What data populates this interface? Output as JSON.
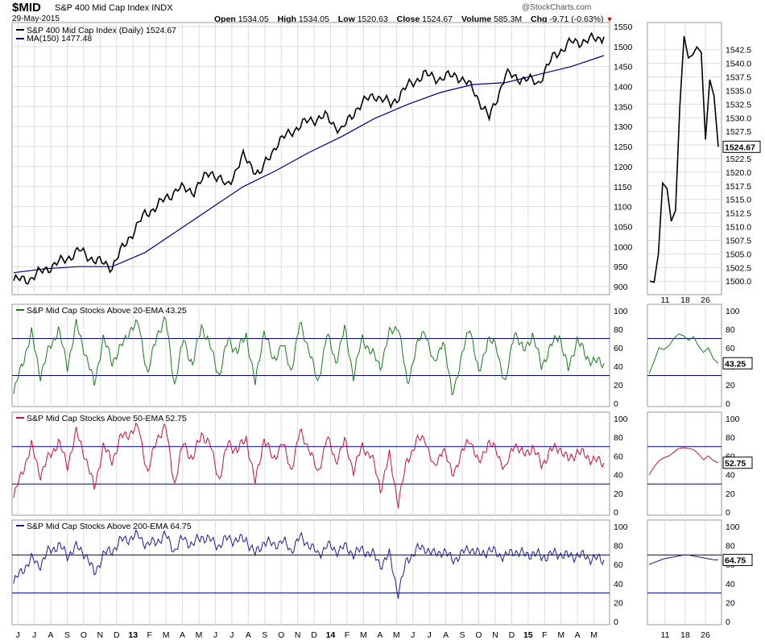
{
  "header": {
    "symbol": "$MID",
    "name": "S&P 400 Mid Cap Index",
    "exchange": "INDX",
    "date": "29-May-2015",
    "copyright": "@StockCharts.com",
    "quote": {
      "open_label": "Open",
      "open": "1534.05",
      "high_label": "High",
      "high": "1534.05",
      "low_label": "Low",
      "low": "1520.63",
      "close_label": "Close",
      "close": "1524.67",
      "volume_label": "Volume",
      "volume": "585.3M",
      "chg_label": "Chg",
      "chg": "-9.71 (-0.63%)",
      "chg_arrow": "▼"
    }
  },
  "colors": {
    "price": "#000000",
    "ma": "#00008b",
    "ema20": "#1a7a1a",
    "ema50": "#cc1133",
    "ema200": "#1a1a99",
    "ref_line": "#00008b",
    "grid": "#dddddd",
    "frame": "#999999"
  },
  "x_axis": {
    "labels": [
      "J",
      "J",
      "A",
      "S",
      "O",
      "N",
      "D",
      "13",
      "F",
      "M",
      "A",
      "M",
      "J",
      "J",
      "A",
      "S",
      "O",
      "N",
      "D",
      "14",
      "F",
      "M",
      "A",
      "M",
      "J",
      "J",
      "A",
      "S",
      "O",
      "N",
      "D",
      "15",
      "F",
      "M",
      "A",
      "M"
    ],
    "year_labels": [
      "13",
      "14",
      "15"
    ]
  },
  "zoom_x_axis": {
    "labels": [
      "11",
      "18",
      "26"
    ]
  },
  "chart_data": [
    {
      "id": "price",
      "type": "line",
      "title": "S&P 400 Mid Cap Index (Daily) 1524.67",
      "series": [
        {
          "name": "S&P 400 Mid Cap Index (Daily)",
          "last": "1524.67",
          "x": [
            "May-2012",
            "Jun-2012",
            "Jul-2012",
            "Aug-2012",
            "Sep-2012",
            "Oct-2012",
            "Nov-2012",
            "Dec-2012",
            "Jan-2013",
            "Feb-2013",
            "Mar-2013",
            "Apr-2013",
            "May-2013",
            "Jun-2013",
            "Jul-2013",
            "Aug-2013",
            "Sep-2013",
            "Oct-2013",
            "Nov-2013",
            "Dec-2013",
            "Jan-2014",
            "Feb-2014",
            "Mar-2014",
            "Apr-2014",
            "May-2014",
            "Jun-2014",
            "Jul-2014",
            "Aug-2014",
            "Sep-2014",
            "Oct-2014",
            "Nov-2014",
            "Dec-2014",
            "Jan-2015",
            "Feb-2015",
            "Mar-2015",
            "Apr-2015",
            "May-2015"
          ],
          "values": [
            915,
            920,
            945,
            965,
            990,
            965,
            950,
            1020,
            1080,
            1110,
            1145,
            1140,
            1190,
            1150,
            1225,
            1180,
            1255,
            1290,
            1315,
            1325,
            1290,
            1350,
            1380,
            1355,
            1400,
            1430,
            1420,
            1430,
            1395,
            1320,
            1430,
            1420,
            1410,
            1480,
            1510,
            1515,
            1524.67
          ]
        },
        {
          "name": "MA(150)",
          "last": "1477.48",
          "x": [
            "May-2012",
            "Jul-2012",
            "Sep-2012",
            "Nov-2012",
            "Jan-2013",
            "Mar-2013",
            "May-2013",
            "Jul-2013",
            "Sep-2013",
            "Nov-2013",
            "Jan-2014",
            "Mar-2014",
            "May-2014",
            "Jul-2014",
            "Sep-2014",
            "Nov-2014",
            "Jan-2015",
            "Mar-2015",
            "May-2015"
          ],
          "values": [
            935,
            945,
            950,
            950,
            985,
            1040,
            1095,
            1150,
            1190,
            1235,
            1275,
            1320,
            1355,
            1385,
            1405,
            1410,
            1430,
            1450,
            1477.48
          ]
        }
      ],
      "yticks": [
        900,
        950,
        1000,
        1050,
        1100,
        1150,
        1200,
        1250,
        1300,
        1350,
        1400,
        1450,
        1500,
        1550
      ],
      "ylim": [
        880,
        1560
      ]
    },
    {
      "id": "price_zoom",
      "type": "line",
      "x": [
        "May-06",
        "May-07",
        "May-08",
        "May-11",
        "May-12",
        "May-13",
        "May-14",
        "May-15",
        "May-18",
        "May-19",
        "May-20",
        "May-21",
        "May-22",
        "May-26",
        "May-27",
        "May-28",
        "May-29"
      ],
      "values": [
        1500.0,
        1499.8,
        1505.0,
        1518.0,
        1517.0,
        1511.0,
        1513.0,
        1532.0,
        1545.0,
        1541.0,
        1541.5,
        1543.0,
        1542.0,
        1526.0,
        1537.0,
        1534.0,
        1524.67
      ],
      "yticks": [
        1500.0,
        1502.5,
        1505.0,
        1507.5,
        1510.0,
        1512.5,
        1515.0,
        1517.5,
        1520.0,
        1522.5,
        1525.0,
        1527.5,
        1530.0,
        1532.5,
        1535.0,
        1537.5,
        1540.0,
        1542.5
      ],
      "ylim": [
        1499,
        1546
      ],
      "last_label": "1524.67"
    },
    {
      "id": "ema20",
      "type": "line",
      "title": "S&P Mid Cap Stocks Above 20-EMA 43.25",
      "series_name": "S&P Mid Cap Stocks Above 20-EMA",
      "last": "43.25",
      "values": [
        10,
        45,
        75,
        30,
        60,
        80,
        40,
        85,
        55,
        20,
        70,
        45,
        60,
        80,
        85,
        30,
        75,
        90,
        20,
        70,
        40,
        85,
        60,
        30,
        70,
        55,
        75,
        20,
        80,
        45,
        65,
        35,
        85,
        60,
        20,
        75,
        45,
        80,
        30,
        70,
        55,
        40,
        75,
        85,
        20,
        60,
        80,
        40,
        70,
        10,
        45,
        85,
        30,
        70,
        60,
        20,
        80,
        55,
        75,
        40,
        60,
        75,
        35,
        70,
        50,
        45,
        43.25
      ],
      "zoom_values": [
        32,
        45,
        60,
        58,
        62,
        70,
        75,
        73,
        68,
        72,
        62,
        55,
        60,
        48,
        43.25
      ],
      "yticks": [
        0,
        20,
        40,
        60,
        80,
        100
      ],
      "ref_lines": [
        30,
        70
      ],
      "ylim": [
        0,
        100
      ]
    },
    {
      "id": "ema50",
      "type": "line",
      "title": "S&P Mid Cap Stocks Above 50-EMA 52.75",
      "series_name": "S&P Mid Cap Stocks Above 50-EMA",
      "last": "52.75",
      "values": [
        15,
        45,
        70,
        40,
        60,
        75,
        50,
        85,
        60,
        25,
        70,
        55,
        80,
        85,
        90,
        40,
        80,
        90,
        30,
        75,
        55,
        85,
        70,
        35,
        75,
        65,
        80,
        30,
        80,
        55,
        75,
        45,
        85,
        70,
        40,
        80,
        55,
        75,
        45,
        70,
        60,
        25,
        60,
        10,
        55,
        75,
        80,
        45,
        70,
        40,
        60,
        80,
        50,
        75,
        65,
        45,
        75,
        60,
        70,
        50,
        65,
        70,
        55,
        65,
        60,
        55,
        52.75
      ],
      "zoom_values": [
        40,
        48,
        55,
        58,
        60,
        64,
        68,
        69,
        68,
        67,
        62,
        56,
        60,
        55,
        52.75
      ],
      "yticks": [
        0,
        20,
        40,
        60,
        80,
        100
      ],
      "ref_lines": [
        30,
        70
      ],
      "ylim": [
        0,
        100
      ]
    },
    {
      "id": "ema200",
      "type": "line",
      "title": "S&P Mid Cap Stocks Above 200-EMA 64.75",
      "series_name": "S&P Mid Cap Stocks Above 200-EMA",
      "last": "64.75",
      "values": [
        40,
        55,
        65,
        60,
        75,
        80,
        70,
        78,
        72,
        50,
        70,
        75,
        85,
        88,
        90,
        80,
        85,
        90,
        75,
        88,
        80,
        90,
        85,
        80,
        88,
        85,
        87,
        70,
        85,
        80,
        85,
        75,
        88,
        82,
        70,
        80,
        75,
        78,
        72,
        75,
        72,
        60,
        70,
        30,
        65,
        75,
        78,
        70,
        75,
        65,
        70,
        78,
        70,
        75,
        72,
        68,
        75,
        70,
        72,
        68,
        70,
        72,
        68,
        70,
        68,
        66,
        64.75
      ],
      "zoom_values": [
        60,
        62,
        64,
        66,
        67,
        68,
        69,
        70,
        70,
        69,
        68,
        67,
        66,
        65,
        64.75
      ],
      "yticks": [
        0,
        20,
        40,
        60,
        80,
        100
      ],
      "ref_lines": [
        30,
        70
      ],
      "ylim": [
        0,
        100
      ]
    }
  ]
}
